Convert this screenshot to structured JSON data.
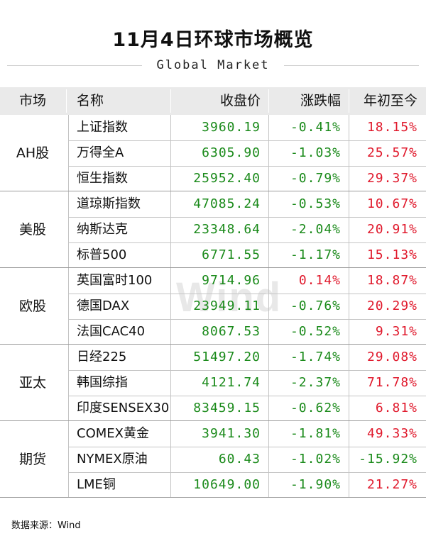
{
  "title": "11月4日环球市场概览",
  "subtitle": "Global Market",
  "headers": {
    "market": "市场",
    "name": "名称",
    "close": "收盘价",
    "change": "涨跌幅",
    "ytd": "年初至今"
  },
  "watermark": "Wind",
  "source": "数据来源：Wind",
  "colors": {
    "up": "#e0192c",
    "down": "#1a8a1a",
    "header_bg": "#eaeaea"
  },
  "groups": [
    {
      "market": "AH股",
      "rows": [
        {
          "name": "上证指数",
          "close": "3960.19",
          "change": "-0.41%",
          "ytd": "18.15%"
        },
        {
          "name": "万得全A",
          "close": "6305.90",
          "change": "-1.03%",
          "ytd": "25.57%"
        },
        {
          "name": "恒生指数",
          "close": "25952.40",
          "change": "-0.79%",
          "ytd": "29.37%"
        }
      ]
    },
    {
      "market": "美股",
      "rows": [
        {
          "name": "道琼斯指数",
          "close": "47085.24",
          "change": "-0.53%",
          "ytd": "10.67%"
        },
        {
          "name": "纳斯达克",
          "close": "23348.64",
          "change": "-2.04%",
          "ytd": "20.91%"
        },
        {
          "name": "标普500",
          "close": "6771.55",
          "change": "-1.17%",
          "ytd": "15.13%"
        }
      ]
    },
    {
      "market": "欧股",
      "rows": [
        {
          "name": "英国富时100",
          "close": "9714.96",
          "change": "0.14%",
          "ytd": "18.87%"
        },
        {
          "name": "德国DAX",
          "close": "23949.11",
          "change": "-0.76%",
          "ytd": "20.29%"
        },
        {
          "name": "法国CAC40",
          "close": "8067.53",
          "change": "-0.52%",
          "ytd": "9.31%"
        }
      ]
    },
    {
      "market": "亚太",
      "rows": [
        {
          "name": "日经225",
          "close": "51497.20",
          "change": "-1.74%",
          "ytd": "29.08%"
        },
        {
          "name": "韩国综指",
          "close": "4121.74",
          "change": "-2.37%",
          "ytd": "71.78%"
        },
        {
          "name": "印度SENSEX30",
          "close": "83459.15",
          "change": "-0.62%",
          "ytd": "6.81%"
        }
      ]
    },
    {
      "market": "期货",
      "rows": [
        {
          "name": "COMEX黄金",
          "close": "3941.30",
          "change": "-1.81%",
          "ytd": "49.33%"
        },
        {
          "name": "NYMEX原油",
          "close": "60.43",
          "change": "-1.02%",
          "ytd": "-15.92%"
        },
        {
          "name": "LME铜",
          "close": "10649.00",
          "change": "-1.90%",
          "ytd": "21.27%"
        }
      ]
    }
  ]
}
